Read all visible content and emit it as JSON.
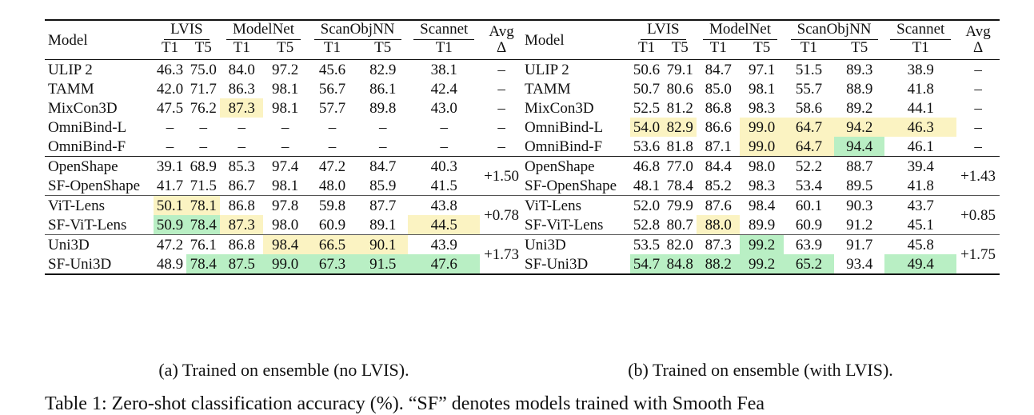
{
  "tables": [
    {
      "id": "a",
      "header": {
        "model": "Model",
        "groups": [
          "LVIS",
          "ModelNet",
          "ScanObjNN",
          "Scannet"
        ],
        "avg": "Avg",
        "delta": "Δ",
        "subs": [
          "T1",
          "T5",
          "T1",
          "T5",
          "T1",
          "T5",
          "T1"
        ]
      },
      "blocks": [
        {
          "rows": [
            {
              "model": "ULIP 2",
              "vals": [
                "46.3",
                "75.0",
                "84.0",
                "97.2",
                "45.6",
                "82.9",
                "38.1"
              ],
              "avg": "–"
            },
            {
              "model": "TAMM",
              "vals": [
                "42.0",
                "71.7",
                "86.3",
                "98.1",
                "56.7",
                "86.1",
                "42.4"
              ],
              "avg": "–"
            },
            {
              "model": "MixCon3D",
              "vals": [
                "47.5",
                "76.2",
                "87.3",
                "98.1",
                "57.7",
                "89.8",
                "43.0"
              ],
              "avg": "–"
            },
            {
              "model": "OmniBind-L",
              "vals": [
                "–",
                "–",
                "–",
                "–",
                "–",
                "–",
                "–"
              ],
              "avg": "–"
            },
            {
              "model": "OmniBind-F",
              "vals": [
                "–",
                "–",
                "–",
                "–",
                "–",
                "–",
                "–"
              ],
              "avg": "–"
            }
          ]
        },
        {
          "delta": "+1.50",
          "rows": [
            {
              "model": "OpenShape",
              "vals": [
                "39.1",
                "68.9",
                "85.3",
                "97.4",
                "47.2",
                "84.7",
                "40.3"
              ]
            },
            {
              "model": "SF-OpenShape",
              "vals": [
                "41.7",
                "71.5",
                "86.7",
                "98.1",
                "48.0",
                "85.9",
                "41.5"
              ]
            }
          ]
        },
        {
          "delta": "+0.78",
          "rows": [
            {
              "model": "ViT-Lens",
              "vals": [
                "50.1",
                "78.1",
                "86.8",
                "97.8",
                "59.8",
                "87.7",
                "43.8"
              ]
            },
            {
              "model": "SF-ViT-Lens",
              "vals": [
                "50.9",
                "78.4",
                "87.3",
                "98.0",
                "60.9",
                "89.1",
                "44.5"
              ]
            }
          ]
        },
        {
          "delta": "+1.73",
          "rows": [
            {
              "model": "Uni3D",
              "vals": [
                "47.2",
                "76.1",
                "86.8",
                "98.4",
                "66.5",
                "90.1",
                "43.9"
              ]
            },
            {
              "model": "SF-Uni3D",
              "vals": [
                "48.9",
                "78.4",
                "87.5",
                "99.0",
                "67.3",
                "91.5",
                "47.6"
              ]
            }
          ]
        }
      ],
      "caption": "(a) Trained on ensemble (no LVIS)."
    },
    {
      "id": "b",
      "header": {
        "model": "Model",
        "groups": [
          "LVIS",
          "ModelNet",
          "ScanObjNN",
          "Scannet"
        ],
        "avg": "Avg",
        "delta": "Δ",
        "subs": [
          "T1",
          "T5",
          "T1",
          "T5",
          "T1",
          "T5",
          "T1"
        ]
      },
      "blocks": [
        {
          "rows": [
            {
              "model": "ULIP 2",
              "vals": [
                "50.6",
                "79.1",
                "84.7",
                "97.1",
                "51.5",
                "89.3",
                "38.9"
              ],
              "avg": "–"
            },
            {
              "model": "TAMM",
              "vals": [
                "50.7",
                "80.6",
                "85.0",
                "98.1",
                "55.7",
                "88.9",
                "41.8"
              ],
              "avg": "–"
            },
            {
              "model": "MixCon3D",
              "vals": [
                "52.5",
                "81.2",
                "86.8",
                "98.3",
                "58.6",
                "89.2",
                "44.1"
              ],
              "avg": "–"
            },
            {
              "model": "OmniBind-L",
              "vals": [
                "54.0",
                "82.9",
                "86.6",
                "99.0",
                "64.7",
                "94.2",
                "46.3"
              ],
              "avg": "–"
            },
            {
              "model": "OmniBind-F",
              "vals": [
                "53.6",
                "81.8",
                "87.1",
                "99.0",
                "64.7",
                "94.4",
                "46.1"
              ],
              "avg": "–"
            }
          ]
        },
        {
          "delta": "+1.43",
          "rows": [
            {
              "model": "OpenShape",
              "vals": [
                "46.8",
                "77.0",
                "84.4",
                "98.0",
                "52.2",
                "88.7",
                "39.4"
              ]
            },
            {
              "model": "SF-OpenShape",
              "vals": [
                "48.1",
                "78.4",
                "85.2",
                "98.3",
                "53.4",
                "89.5",
                "41.8"
              ]
            }
          ]
        },
        {
          "delta": "+0.85",
          "rows": [
            {
              "model": "ViT-Lens",
              "vals": [
                "52.0",
                "79.9",
                "87.6",
                "98.4",
                "60.1",
                "90.3",
                "43.7"
              ]
            },
            {
              "model": "SF-ViT-Lens",
              "vals": [
                "52.8",
                "80.7",
                "88.0",
                "89.9",
                "60.9",
                "91.2",
                "45.1"
              ]
            }
          ]
        },
        {
          "delta": "+1.75",
          "rows": [
            {
              "model": "Uni3D",
              "vals": [
                "53.5",
                "82.0",
                "87.3",
                "99.2",
                "63.9",
                "91.7",
                "45.8"
              ]
            },
            {
              "model": "SF-Uni3D",
              "vals": [
                "54.7",
                "84.8",
                "88.2",
                "99.2",
                "65.2",
                "93.4",
                "49.4"
              ]
            }
          ]
        }
      ],
      "caption": "(b) Trained on ensemble (with LVIS)."
    }
  ],
  "highlights": {
    "a": {
      "0.2.2": "yellow",
      "2.0.0": "yellow",
      "2.0.1": "yellow",
      "2.1.0": "green-bold",
      "2.1.1": "green-bold",
      "2.1.2": "yellow",
      "2.1.6": "yellow",
      "3.0.3": "yellow",
      "3.0.4": "yellow",
      "3.0.5": "yellow",
      "3.1.1": "green-bold",
      "3.1.2": "green-bold",
      "3.1.3": "green-bold",
      "3.1.4": "green-bold",
      "3.1.5": "green-bold",
      "3.1.6": "green-bold"
    },
    "b": {
      "0.3.0": "yellow",
      "0.3.1": "yellow",
      "0.3.3": "yellow",
      "0.3.4": "yellow",
      "0.3.5": "yellow",
      "0.3.6": "yellow",
      "0.4.3": "yellow",
      "0.4.4": "yellow",
      "0.4.5": "green-bold",
      "2.1.2": "yellow",
      "3.0.3": "green-bold",
      "3.1.0": "green-bold",
      "3.1.1": "green-bold",
      "3.1.2": "green-bold",
      "3.1.3": "green-bold",
      "3.1.4": "green-bold",
      "3.1.6": "green-bold"
    }
  },
  "colors": {
    "yellow": "#fbf3c2",
    "green": "#b9efc4"
  },
  "cutoff_text": "Table 1: Zero-shot classification accuracy (%). “SF” denotes models trained with Smooth Fea"
}
